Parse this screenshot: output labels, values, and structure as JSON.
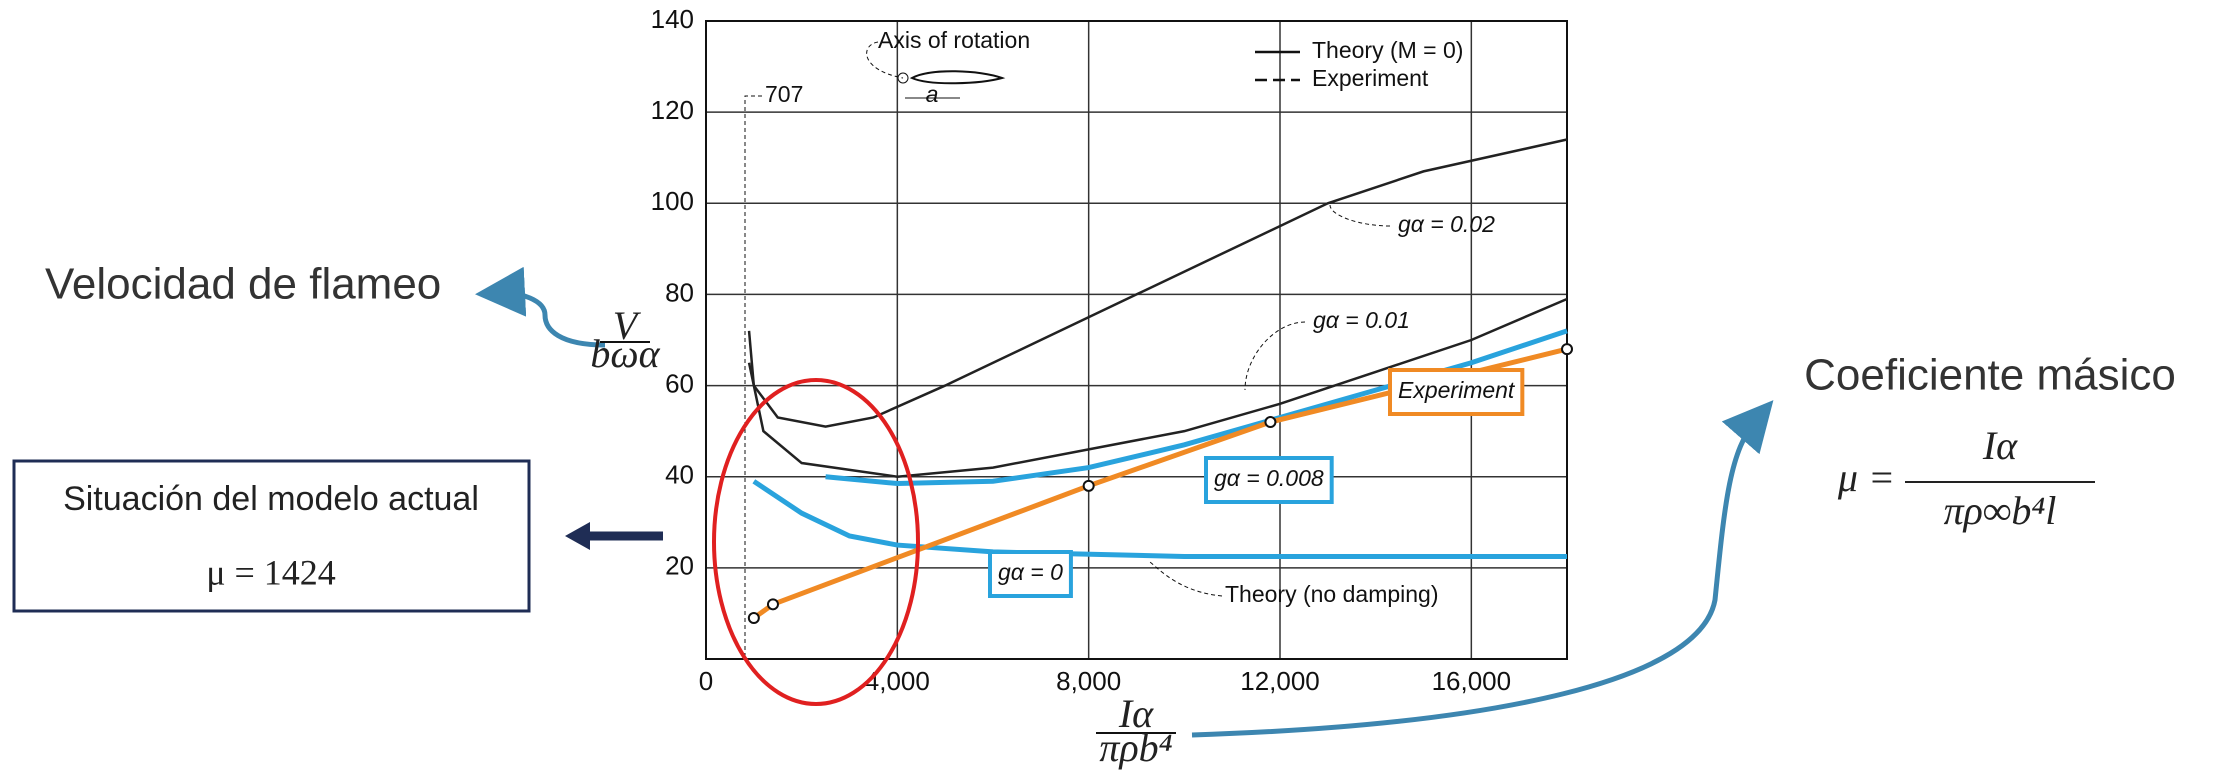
{
  "slide": {
    "left_label": "Velocidad de flameo",
    "right_label": "Coeficiente másico",
    "formula": {
      "lhs": "μ =",
      "num": "Iα",
      "den": "πρ∞b⁴l"
    },
    "box": {
      "title": "Situación del modelo actual",
      "value": "μ = 1424"
    }
  },
  "chart_data": {
    "type": "line",
    "y_label": {
      "num": "V",
      "den": "bωα"
    },
    "x_label": {
      "num": "Iα",
      "den": "πρb⁴"
    },
    "xlim": [
      0,
      18000
    ],
    "ylim": [
      0,
      140
    ],
    "xticks": [
      0,
      {
        "value": 4000,
        "label": "4,000"
      },
      {
        "value": 8000,
        "label": "8,000"
      },
      {
        "value": 12000,
        "label": "12,000"
      },
      {
        "value": 16000,
        "label": "16,000"
      }
    ],
    "yticks": [
      20,
      40,
      60,
      80,
      100,
      120,
      140
    ],
    "grid": true,
    "legend": [
      {
        "label": "Theory (M = 0)",
        "dash": false
      },
      {
        "label": "Experiment",
        "dash": true
      }
    ],
    "annotations": {
      "axis": "Axis of rotation",
      "chord": "a",
      "model": "707",
      "no_damping": "Theory (no damping)"
    },
    "series": [
      {
        "name": "gα = 0.02",
        "color": "#222222",
        "boxed": false,
        "x": [
          900,
          1000,
          1500,
          2500,
          3500,
          5000,
          7000,
          9000,
          11000,
          13000,
          15000,
          18000
        ],
        "values": [
          72,
          60,
          53,
          51,
          53,
          60,
          70,
          80,
          90,
          100,
          107,
          114
        ]
      },
      {
        "name": "gα = 0.01",
        "color": "#222222",
        "boxed": false,
        "x": [
          900,
          1200,
          2000,
          4000,
          6000,
          8000,
          10000,
          12000,
          14000,
          16000,
          18000
        ],
        "values": [
          65,
          50,
          43,
          40,
          42,
          46,
          50,
          56,
          63,
          70,
          79
        ]
      },
      {
        "name": "gα = 0.008",
        "color": "#29a3dd",
        "boxed": true,
        "x": [
          2500,
          4000,
          6000,
          8000,
          10000,
          12000,
          14000,
          16000,
          18000
        ],
        "values": [
          40,
          38.5,
          39,
          42,
          47,
          53,
          59,
          65,
          72
        ]
      },
      {
        "name": "gα = 0",
        "color": "#29a3dd",
        "boxed": true,
        "x": [
          1000,
          2000,
          3000,
          4000,
          6000,
          10000,
          18000
        ],
        "values": [
          39,
          32,
          27,
          25,
          23.5,
          22.5,
          22.5
        ]
      },
      {
        "name": "Experiment",
        "color": "#f08a24",
        "boxed": true,
        "markers": true,
        "x": [
          1000,
          1400,
          8000,
          11800,
          18000
        ],
        "values": [
          9,
          12,
          38,
          52,
          68
        ]
      }
    ]
  }
}
